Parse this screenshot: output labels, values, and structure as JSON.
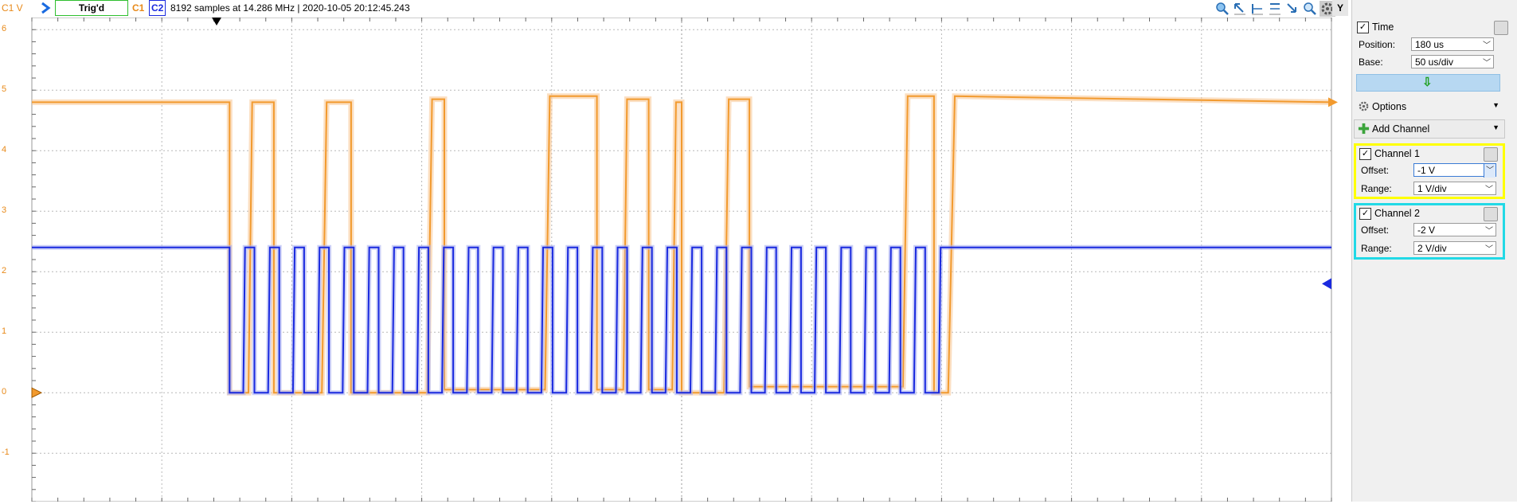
{
  "top": {
    "unit": "C1 V",
    "trigger_status": "Trig'd",
    "c1": "C1",
    "c2": "C2",
    "info": "8192 samples at 14.286 MHz | 2020-10-05 20:12:45.243",
    "y_button": "Y"
  },
  "axis": {
    "y_ticks": [
      "6",
      "5",
      "4",
      "3",
      "2",
      "1",
      "0",
      "-1"
    ]
  },
  "side": {
    "time": {
      "title": "Time",
      "position_label": "Position:",
      "position_value": "180 us",
      "base_label": "Base:",
      "base_value": "50 us/div"
    },
    "options": "Options",
    "add_channel": "Add Channel",
    "channel1": {
      "title": "Channel 1",
      "offset_label": "Offset:",
      "offset_value": "-1 V",
      "range_label": "Range:",
      "range_value": "1 V/div",
      "color": "#ffff00"
    },
    "channel2": {
      "title": "Channel 2",
      "offset_label": "Offset:",
      "offset_value": "-2 V",
      "range_label": "Range:",
      "range_value": "2 V/div",
      "color": "#22d9e6"
    }
  },
  "colors": {
    "c1": "#f29a2e",
    "c2": "#1a2adf",
    "grid": "#b8b8b8"
  },
  "chart_data": {
    "type": "line",
    "y_range": [
      -1.8,
      6.2
    ],
    "y_unit": "V",
    "series": [
      {
        "name": "C1",
        "segments": [
          [
            0,
            4.8
          ],
          [
            210,
            4.8
          ],
          [
            210,
            0
          ],
          [
            230,
            0
          ],
          [
            234,
            4.8
          ],
          [
            257,
            4.8
          ],
          [
            257,
            0
          ],
          [
            308,
            0
          ],
          [
            313,
            4.8
          ],
          [
            339,
            4.8
          ],
          [
            339,
            0
          ],
          [
            420,
            0
          ],
          [
            425,
            4.85
          ],
          [
            438,
            4.85
          ],
          [
            438,
            0.05
          ],
          [
            545,
            0.05
          ],
          [
            550,
            4.9
          ],
          [
            600,
            4.9
          ],
          [
            600,
            0.05
          ],
          [
            628,
            0.05
          ],
          [
            632,
            4.85
          ],
          [
            655,
            4.85
          ],
          [
            655,
            0.05
          ],
          [
            680,
            0.05
          ],
          [
            684,
            4.8
          ],
          [
            690,
            4.8
          ],
          [
            690,
            0
          ],
          [
            735,
            0
          ],
          [
            740,
            4.85
          ],
          [
            762,
            4.85
          ],
          [
            762,
            0.1
          ],
          [
            925,
            0.1
          ],
          [
            930,
            4.9
          ],
          [
            958,
            4.9
          ],
          [
            958,
            0
          ],
          [
            973,
            0
          ],
          [
            980,
            4.9
          ],
          [
            1380,
            4.8
          ]
        ]
      },
      {
        "name": "C2",
        "clock_high": 2.4,
        "clock_low": 0,
        "clock_start": 210,
        "clock_end": 975,
        "pulse_count": 29
      }
    ]
  }
}
